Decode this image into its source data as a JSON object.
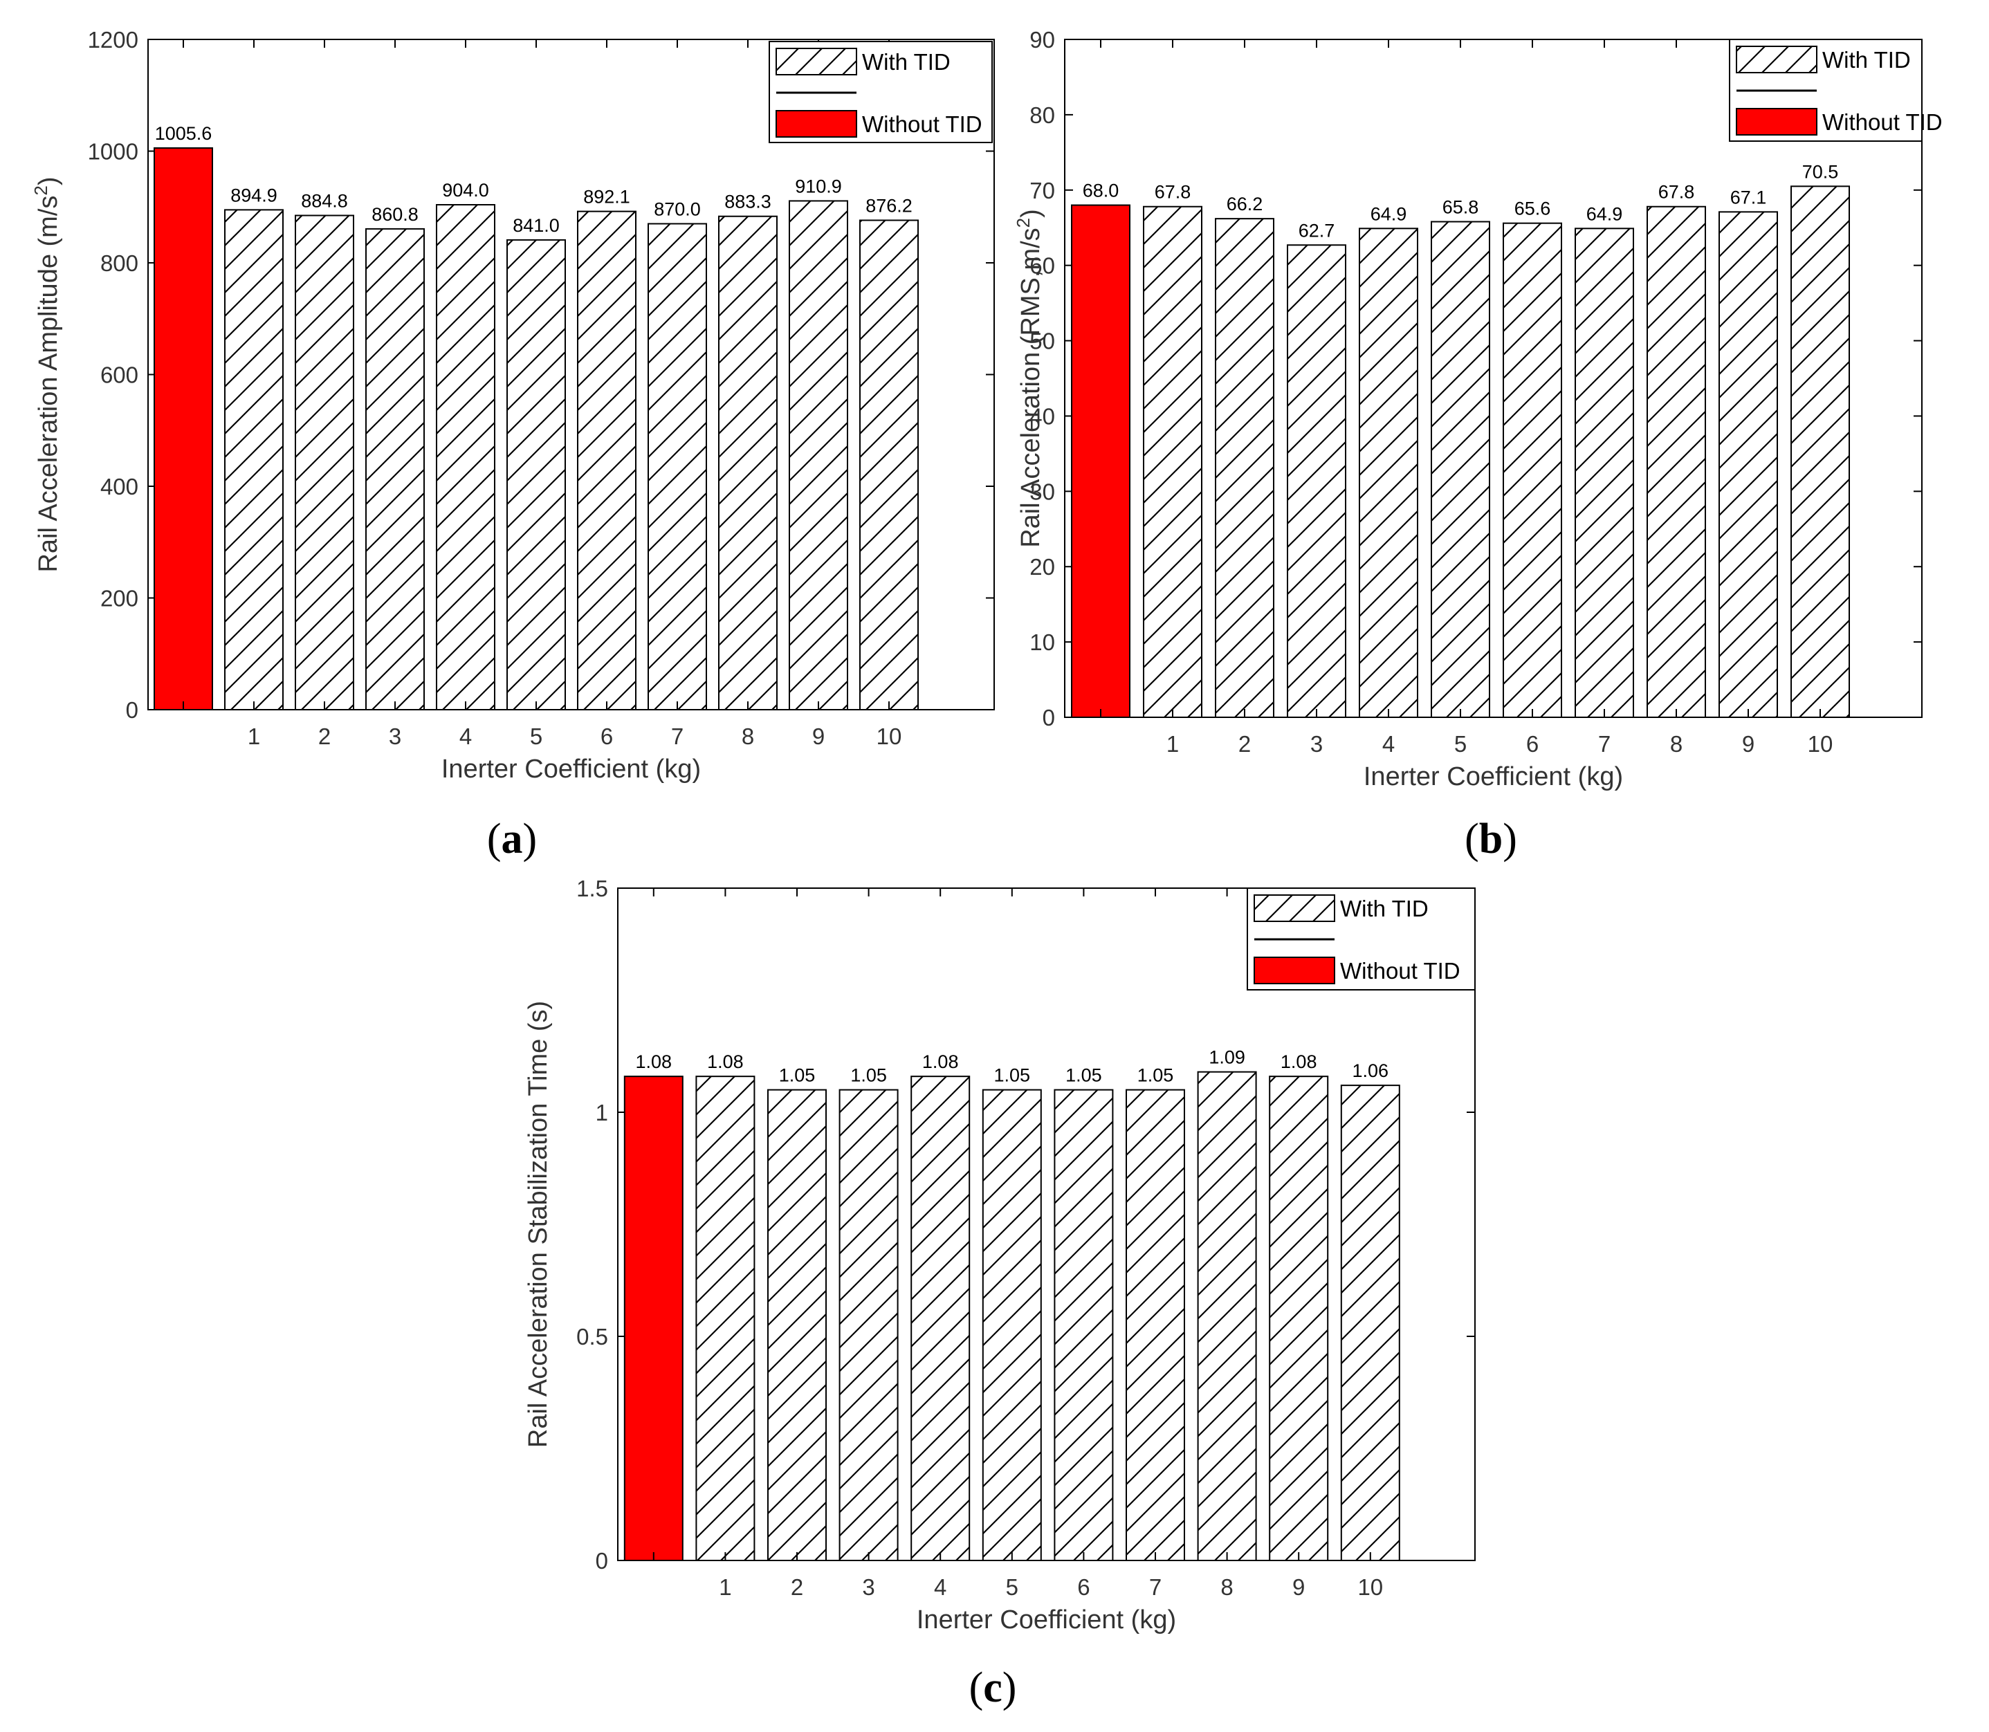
{
  "colors": {
    "without_fill": "#ff0000",
    "with_fill": "#ffffff",
    "hatch": "#000000",
    "axis": "#000000"
  },
  "chart_data": [
    {
      "id": "a",
      "type": "bar",
      "panel_label": "(a)",
      "categories": [
        "",
        "1",
        "2",
        "3",
        "4",
        "5",
        "6",
        "7",
        "8",
        "9",
        "10"
      ],
      "series": [
        {
          "name": "Without TID",
          "values": [
            1005.6,
            null,
            null,
            null,
            null,
            null,
            null,
            null,
            null,
            null,
            null
          ]
        },
        {
          "name": "With TID",
          "values": [
            null,
            894.9,
            884.8,
            860.8,
            904.0,
            841.0,
            892.1,
            870.0,
            883.3,
            910.9,
            876.2
          ]
        }
      ],
      "data_labels": [
        "1005.6",
        "894.9",
        "884.8",
        "860.8",
        "904.0",
        "841.0",
        "892.1",
        "870.0",
        "883.3",
        "910.9",
        "876.2"
      ],
      "xlabel": "Inerter Coefficient (kg)",
      "ylabel_main": "Rail Acceleration Amplitude (m/s",
      "ylabel_sup": "2",
      "ylabel_tail": ")",
      "ylim": [
        0,
        1200
      ],
      "yticks": [
        0,
        200,
        400,
        600,
        800,
        1000,
        1200
      ],
      "ytick_labels": [
        "0",
        "200",
        "400",
        "600",
        "800",
        "1000",
        "1200"
      ],
      "legend": {
        "position": "top-right",
        "entries": [
          "With TID",
          "Without TID"
        ]
      }
    },
    {
      "id": "b",
      "type": "bar",
      "panel_label": "(b)",
      "categories": [
        "",
        "1",
        "2",
        "3",
        "4",
        "5",
        "6",
        "7",
        "8",
        "9",
        "10"
      ],
      "series": [
        {
          "name": "Without TID",
          "values": [
            68.0,
            null,
            null,
            null,
            null,
            null,
            null,
            null,
            null,
            null,
            null
          ]
        },
        {
          "name": "With TID",
          "values": [
            null,
            67.8,
            66.2,
            62.7,
            64.9,
            65.8,
            65.6,
            64.9,
            67.8,
            67.1,
            70.5
          ]
        }
      ],
      "data_labels": [
        "68.0",
        "67.8",
        "66.2",
        "62.7",
        "64.9",
        "65.8",
        "65.6",
        "64.9",
        "67.8",
        "67.1",
        "70.5"
      ],
      "xlabel": "Inerter Coefficient (kg)",
      "ylabel_main": "Rail Acceleration (RMS,m/s",
      "ylabel_sup": "2",
      "ylabel_tail": ")",
      "ylim": [
        0,
        90
      ],
      "yticks": [
        0,
        10,
        20,
        30,
        40,
        50,
        60,
        70,
        80,
        90
      ],
      "ytick_labels": [
        "0",
        "10",
        "20",
        "30",
        "40",
        "50",
        "60",
        "70",
        "80",
        "90"
      ],
      "legend": {
        "position": "top-right",
        "entries": [
          "With TID",
          "Without TID"
        ]
      }
    },
    {
      "id": "c",
      "type": "bar",
      "panel_label": "(c)",
      "categories": [
        "",
        "1",
        "2",
        "3",
        "4",
        "5",
        "6",
        "7",
        "8",
        "9",
        "10"
      ],
      "series": [
        {
          "name": "Without TID",
          "values": [
            1.08,
            null,
            null,
            null,
            null,
            null,
            null,
            null,
            null,
            null,
            null
          ]
        },
        {
          "name": "With TID",
          "values": [
            null,
            1.08,
            1.05,
            1.05,
            1.08,
            1.05,
            1.05,
            1.05,
            1.09,
            1.08,
            1.06
          ]
        }
      ],
      "data_labels": [
        "1.08",
        "1.08",
        "1.05",
        "1.05",
        "1.08",
        "1.05",
        "1.05",
        "1.05",
        "1.09",
        "1.08",
        "1.06"
      ],
      "xlabel": "Inerter Coefficient (kg)",
      "ylabel_main": "Rail Acceleration Stabilization Time (s)",
      "ylabel_sup": "",
      "ylabel_tail": "",
      "ylim": [
        0,
        1.5
      ],
      "yticks": [
        0,
        0.5,
        1,
        1.5
      ],
      "ytick_labels": [
        "0",
        "0.5",
        "1",
        "1.5"
      ],
      "legend": {
        "position": "top-right",
        "entries": [
          "With TID",
          "Without TID"
        ]
      }
    }
  ]
}
